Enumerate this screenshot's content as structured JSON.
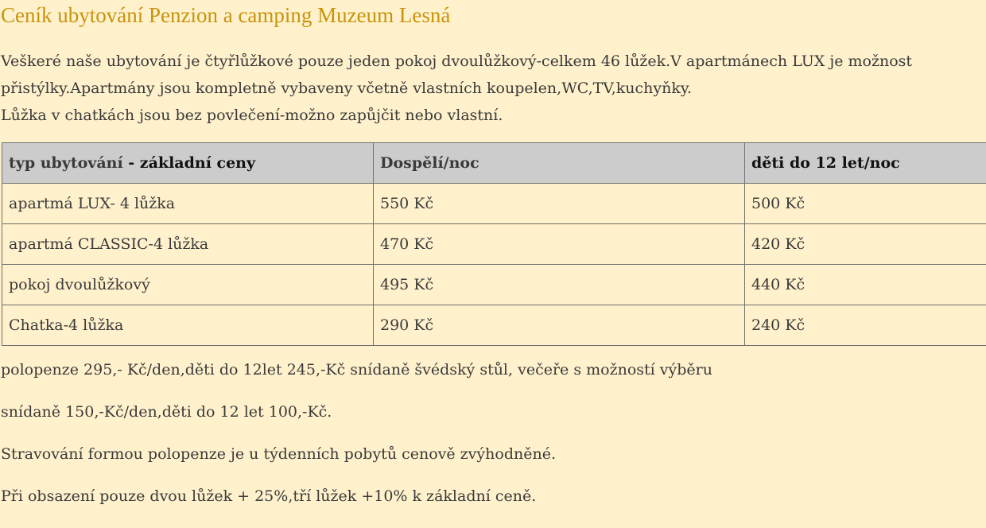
{
  "title": "Ceník ubytování Penzion a camping Muzeum Lesná",
  "intro": [
    "Veškeré naše ubytování je čtyřlůžkové pouze jeden pokoj dvoulůžkový-celkem 46 lůžek.V apartmánech LUX je možnost přistýlky.Apartmány jsou kompletně vybaveny včetně vlastních koupelen,WC,TV,kuchyňky.",
    "Lůžka v chatkách jsou bez povlečení-možno zapůjčit nebo vlastní."
  ],
  "table": {
    "headers": {
      "type_a": "typ ubytování",
      "type_b": " - základní ceny",
      "adults": "Dospělí/noc",
      "children": "děti do 12 let/noc"
    },
    "rows": [
      {
        "type": "apartmá LUX- 4 lůžka",
        "adults": "550 Kč",
        "children": "500 Kč"
      },
      {
        "type": "apartmá CLASSIC-4 lůžka",
        "adults": "470 Kč",
        "children": "420 Kč"
      },
      {
        "type": "pokoj dvoulůžkový",
        "adults": "495 Kč",
        "children": "440 Kč"
      },
      {
        "type": "Chatka-4 lůžka",
        "adults": "290 Kč",
        "children": "240 Kč"
      }
    ]
  },
  "notes": [
    "polopenze 295,- Kč/den,děti do 12let 245,-Kč snídaně švédský stůl, večeře s možností výběru",
    "snídaně  150,-Kč/den,děti do 12 let 100,-Kč.",
    "Stravování formou polopenze je u týdenních pobytů cenově zvýhodněné.",
    "Při obsazení pouze dvou lůžek + 25%,tří lůžek +10% k základní ceně."
  ]
}
